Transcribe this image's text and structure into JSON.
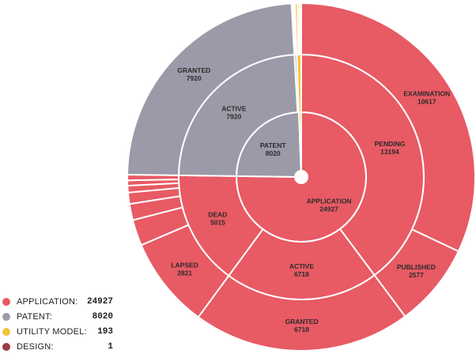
{
  "chart_data": {
    "type": "sunburst",
    "colors": {
      "application": "#e85a64",
      "patent": "#9a9aa8",
      "utility_model": "#f2c53d",
      "design": "#9b3a3f"
    },
    "rings": [
      {
        "level": 1,
        "segments": [
          {
            "category": "application",
            "label": "APPLICATION",
            "value": 24927
          },
          {
            "category": "patent",
            "label": "PATENT",
            "value": 8020
          },
          {
            "category": "utility_model",
            "label": "",
            "value": 193
          },
          {
            "category": "design",
            "label": "",
            "value": 1
          }
        ]
      },
      {
        "level": 2,
        "segments": [
          {
            "category": "application",
            "label": "PENDING",
            "value": 13194
          },
          {
            "category": "application",
            "label": "ACTIVE",
            "value": 6718
          },
          {
            "category": "application",
            "label": "DEAD",
            "value": 5015
          },
          {
            "category": "patent",
            "label": "ACTIVE",
            "value": 7920
          },
          {
            "category": "patent",
            "label": "",
            "value": 100
          },
          {
            "category": "utility_model",
            "label": "",
            "value": 193
          },
          {
            "category": "design",
            "label": "",
            "value": 1
          }
        ]
      },
      {
        "level": 3,
        "segments": [
          {
            "category": "application",
            "label": "EXAMINATION",
            "value": 10617
          },
          {
            "category": "application",
            "label": "PUBLISHED",
            "value": 2577
          },
          {
            "category": "application",
            "label": "GRANTED",
            "value": 6718
          },
          {
            "category": "application",
            "label": "LAPSED",
            "value": 2821
          },
          {
            "category": "application",
            "label": "",
            "value": 800
          },
          {
            "category": "application",
            "label": "",
            "value": 500
          },
          {
            "category": "application",
            "label": "",
            "value": 350
          },
          {
            "category": "application",
            "label": "",
            "value": 210
          },
          {
            "category": "application",
            "label": "",
            "value": 160
          },
          {
            "category": "application",
            "label": "",
            "value": 174
          },
          {
            "category": "patent",
            "label": "GRANTED",
            "value": 7920
          },
          {
            "category": "patent",
            "label": "",
            "value": 40
          },
          {
            "category": "patent",
            "label": "",
            "value": 25
          },
          {
            "category": "patent",
            "label": "",
            "value": 20
          },
          {
            "category": "patent",
            "label": "",
            "value": 15
          },
          {
            "category": "utility_model",
            "label": "",
            "value": 80
          },
          {
            "category": "utility_model",
            "label": "",
            "value": 60
          },
          {
            "category": "utility_model",
            "label": "",
            "value": 53
          },
          {
            "category": "design",
            "label": "",
            "value": 1
          }
        ]
      }
    ],
    "legend": [
      {
        "category": "application",
        "name": "APPLICATION:",
        "value": "24927"
      },
      {
        "category": "patent",
        "name": "PATENT:",
        "value": "8020"
      },
      {
        "category": "utility_model",
        "name": "UTILITY MODEL:",
        "value": "193"
      },
      {
        "category": "design",
        "name": "DESIGN:",
        "value": "1"
      }
    ],
    "legend_position": "bottom-left"
  }
}
